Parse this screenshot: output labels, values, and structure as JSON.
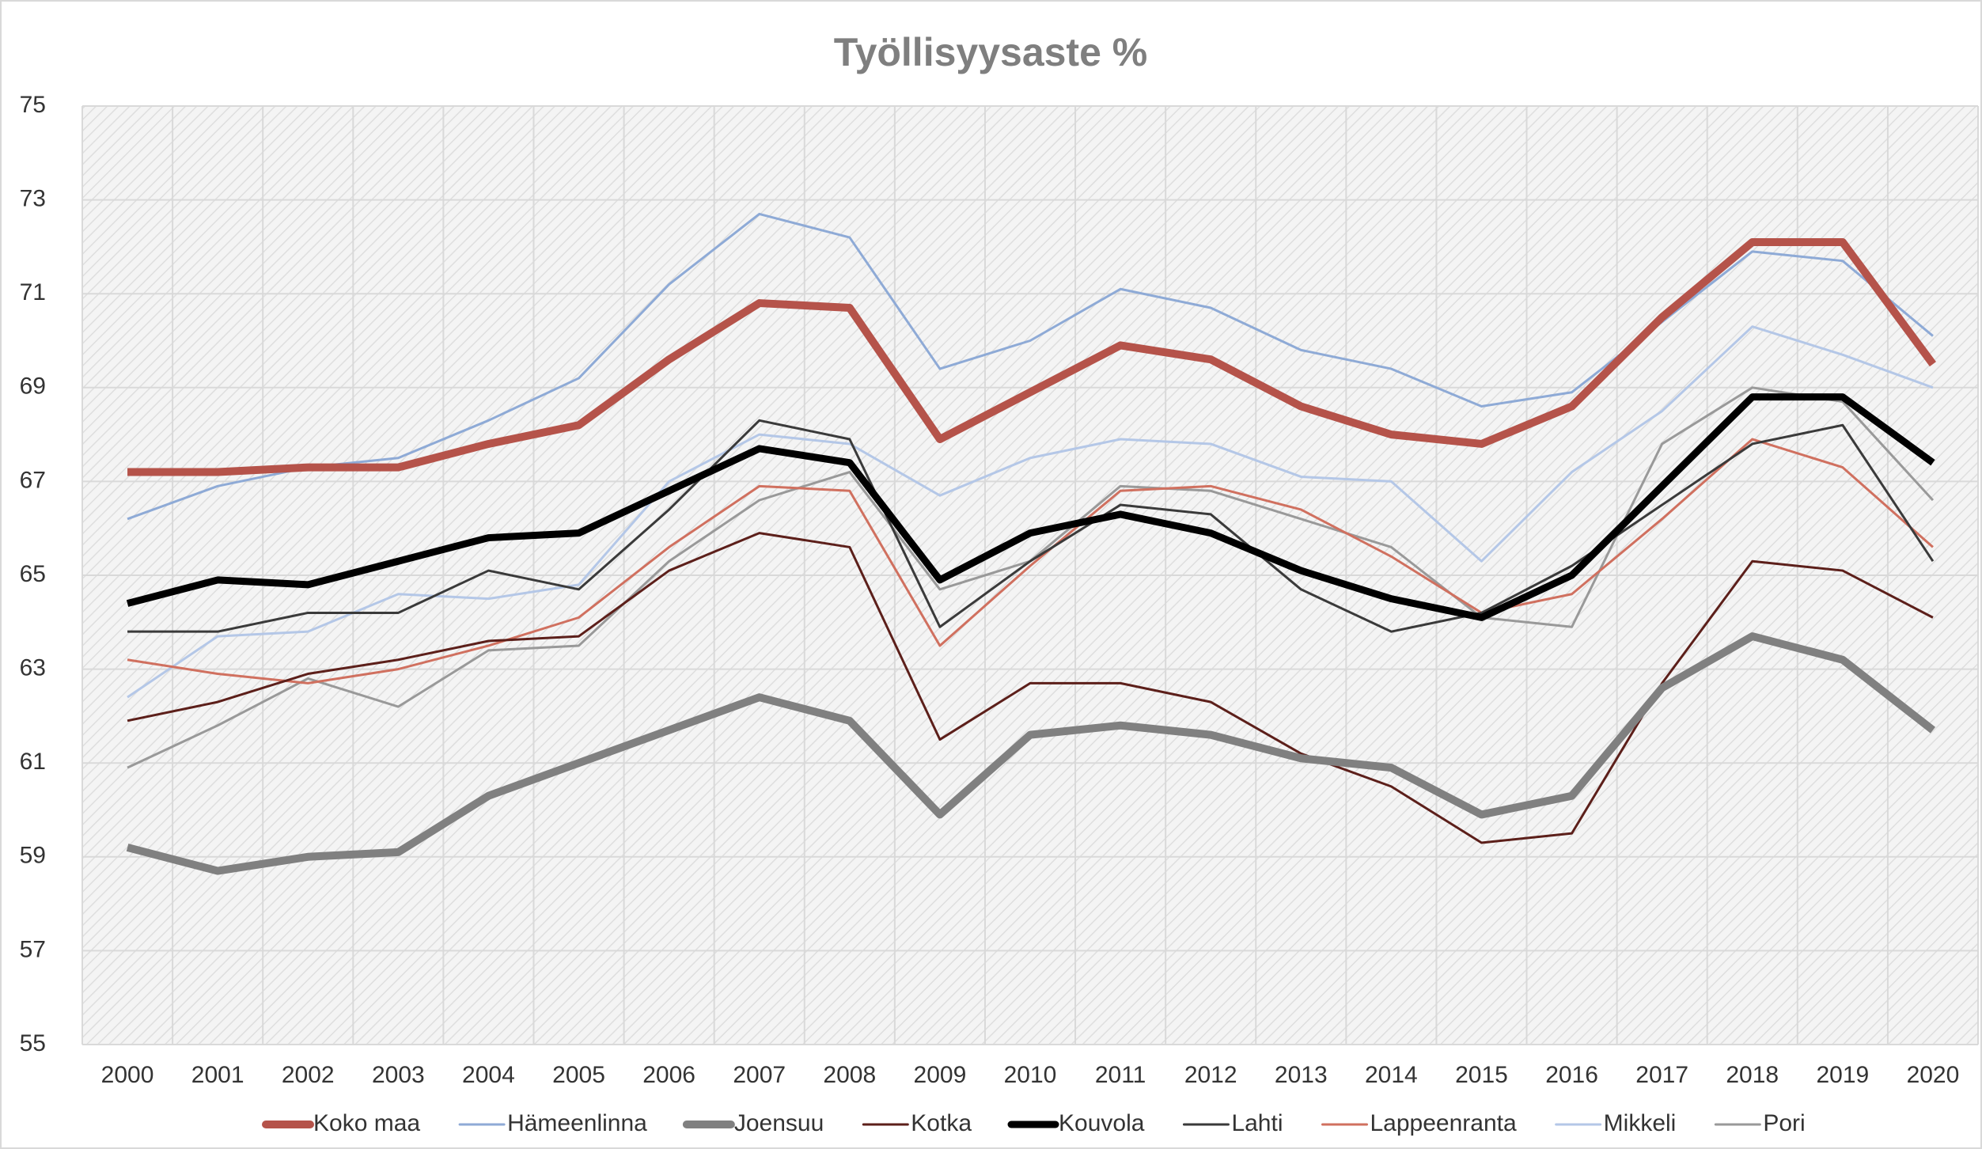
{
  "chart_data": {
    "type": "line",
    "title": "Työllisyysaste %",
    "categories": [
      "2000",
      "2001",
      "2002",
      "2003",
      "2004",
      "2005",
      "2006",
      "2007",
      "2008",
      "2009",
      "2010",
      "2011",
      "2012",
      "2013",
      "2014",
      "2015",
      "2016",
      "2017",
      "2018",
      "2019",
      "2020"
    ],
    "ylim": [
      55,
      75
    ],
    "yticks": [
      55,
      57,
      59,
      61,
      63,
      65,
      67,
      69,
      71,
      73,
      75
    ],
    "grid": true,
    "legend": "bottom",
    "series": [
      {
        "name": "Koko maa",
        "color": "#b5534a",
        "values": [
          67.2,
          67.2,
          67.3,
          67.3,
          67.8,
          68.2,
          69.6,
          70.8,
          70.7,
          67.9,
          68.9,
          69.9,
          69.6,
          68.6,
          68.0,
          67.8,
          68.6,
          70.5,
          72.1,
          72.1,
          69.5
        ]
      },
      {
        "name": "Hämeenlinna",
        "color": "#8eaad6",
        "values": [
          66.2,
          66.9,
          67.3,
          67.5,
          68.3,
          69.2,
          71.2,
          72.7,
          72.2,
          69.4,
          70.0,
          71.1,
          70.7,
          69.8,
          69.4,
          68.6,
          68.9,
          70.4,
          71.9,
          71.7,
          70.1
        ]
      },
      {
        "name": "Joensuu",
        "color": "#808080",
        "values": [
          59.2,
          58.7,
          59.0,
          59.1,
          60.3,
          61.0,
          61.7,
          62.4,
          61.9,
          59.9,
          61.6,
          61.8,
          61.6,
          61.1,
          60.9,
          59.9,
          60.3,
          62.6,
          63.7,
          63.2,
          61.7
        ]
      },
      {
        "name": "Kotka",
        "color": "#5c1f1a",
        "values": [
          61.9,
          62.3,
          62.9,
          63.2,
          63.6,
          63.7,
          65.1,
          65.9,
          65.6,
          61.5,
          62.7,
          62.7,
          62.3,
          61.2,
          60.5,
          59.3,
          59.5,
          62.7,
          65.3,
          65.1,
          64.1
        ]
      },
      {
        "name": "Kouvola",
        "color": "#000000",
        "values": [
          64.4,
          64.9,
          64.8,
          65.3,
          65.8,
          65.9,
          66.8,
          67.7,
          67.4,
          64.9,
          65.9,
          66.3,
          65.9,
          65.1,
          64.5,
          64.1,
          65.0,
          66.9,
          68.8,
          68.8,
          67.4
        ]
      },
      {
        "name": "Lahti",
        "color": "#3a3a3a",
        "values": [
          63.8,
          63.8,
          64.2,
          64.2,
          65.1,
          64.7,
          66.4,
          68.3,
          67.9,
          63.9,
          65.3,
          66.5,
          66.3,
          64.7,
          63.8,
          64.2,
          65.2,
          66.5,
          67.8,
          68.2,
          65.3
        ]
      },
      {
        "name": "Lappeenranta",
        "color": "#d0705f",
        "values": [
          63.2,
          62.9,
          62.7,
          63.0,
          63.5,
          64.1,
          65.6,
          66.9,
          66.8,
          63.5,
          65.2,
          66.8,
          66.9,
          66.4,
          65.4,
          64.2,
          64.6,
          66.2,
          67.9,
          67.3,
          65.6
        ]
      },
      {
        "name": "Mikkeli",
        "color": "#b4c7e7",
        "values": [
          62.4,
          63.7,
          63.8,
          64.6,
          64.5,
          64.8,
          67.0,
          68.0,
          67.8,
          66.7,
          67.5,
          67.9,
          67.8,
          67.1,
          67.0,
          65.3,
          67.2,
          68.5,
          70.3,
          69.7,
          69.0
        ]
      },
      {
        "name": "Pori",
        "color": "#999999",
        "values": [
          60.9,
          61.8,
          62.8,
          62.2,
          63.4,
          63.5,
          65.3,
          66.6,
          67.2,
          64.7,
          65.3,
          66.9,
          66.8,
          66.2,
          65.6,
          64.1,
          63.9,
          67.8,
          69.0,
          68.7,
          66.6
        ]
      }
    ]
  }
}
